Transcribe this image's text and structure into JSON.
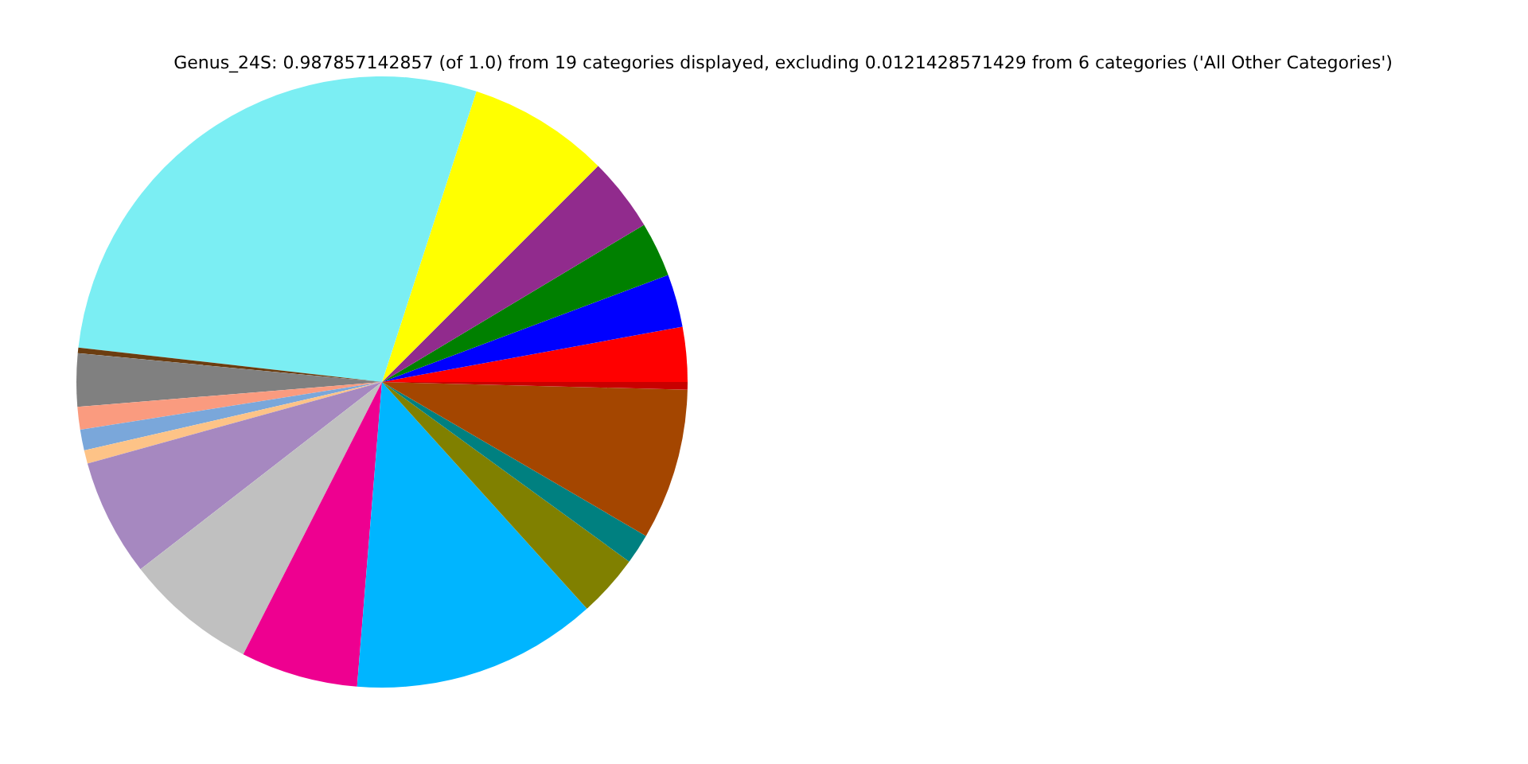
{
  "chart_data": {
    "type": "pie",
    "title": "Genus_24S: 0.987857142857 (of 1.0) from 19 categories displayed, excluding 0.0121428571429 from 6 categories ('All Other Categories')",
    "categories": [
      null,
      null,
      null,
      null,
      null,
      null,
      null,
      null,
      null,
      null,
      null,
      null,
      null,
      null,
      null,
      null,
      null,
      null,
      null
    ],
    "values": [
      2.9,
      2.8,
      2.9,
      3.9,
      7.5,
      28.2,
      0.3,
      2.8,
      1.2,
      1.1,
      0.7,
      6.2,
      7.0,
      6.2,
      13.0,
      3.3,
      1.6,
      8.0,
      0.4
    ],
    "colors": [
      "#ff0000",
      "#0000ff",
      "#008000",
      "#912b8d",
      "#ffff00",
      "#7beef3",
      "#6b3d10",
      "#808080",
      "#fa9b7f",
      "#7aa7da",
      "#fdc387",
      "#a688c0",
      "#c0c0c0",
      "#ee0090",
      "#00b5ff",
      "#808000",
      "#008080",
      "#a44600",
      "#c80000"
    ]
  }
}
